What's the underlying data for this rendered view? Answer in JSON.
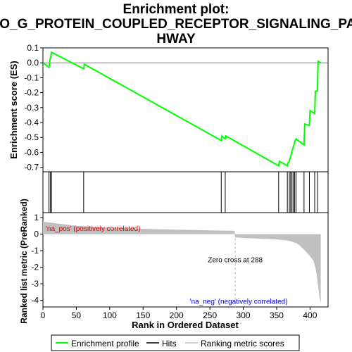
{
  "chart_data": {
    "type": "line",
    "title_lines": [
      "Enrichment plot:",
      "GO_G_PROTEIN_COUPLED_RECEPTOR_SIGNALING_PAT",
      "HWAY"
    ],
    "xlabel": "Rank in Ordered Dataset",
    "ylabel_top": "Enrichment score (ES)",
    "ylabel_bottom": "Ranked list metric (PreRanked)",
    "xlim": [
      0,
      427
    ],
    "x_ticks": [
      0,
      50,
      100,
      150,
      200,
      250,
      300,
      350,
      400
    ],
    "es_ylim": [
      -0.73,
      0.1
    ],
    "es_ticks": [
      0.1,
      0.0,
      -0.1,
      -0.2,
      -0.3,
      -0.4,
      -0.5,
      -0.6,
      -0.7
    ],
    "metric_ylim": [
      -4.4,
      1.3
    ],
    "metric_ticks": [
      1,
      0,
      -1,
      -2,
      -3,
      -4
    ],
    "es_points": {
      "x": [
        0,
        9,
        11,
        13,
        61,
        62,
        267,
        268,
        273,
        274,
        353,
        354,
        366,
        367,
        369,
        370,
        371,
        372,
        373,
        374,
        375,
        376,
        377,
        378,
        379,
        391,
        392,
        399,
        400,
        407,
        408,
        411,
        412,
        416
      ],
      "y": [
        0.0,
        -0.03,
        0.03,
        0.07,
        -0.04,
        -0.01,
        -0.52,
        -0.49,
        -0.51,
        -0.49,
        -0.69,
        -0.66,
        -0.69,
        -0.67,
        -0.66,
        -0.64,
        -0.63,
        -0.61,
        -0.59,
        -0.58,
        -0.56,
        -0.55,
        -0.53,
        -0.52,
        -0.51,
        -0.55,
        -0.41,
        -0.42,
        -0.32,
        -0.34,
        -0.19,
        -0.19,
        0.01,
        0.0
      ]
    },
    "hits": [
      9,
      11,
      13,
      61,
      267,
      273,
      353,
      366,
      369,
      371,
      373,
      375,
      377,
      379,
      391,
      399,
      407,
      411
    ],
    "metric_profile": {
      "x": [
        0,
        20,
        50,
        100,
        150,
        200,
        250,
        287,
        288,
        300,
        330,
        350,
        360,
        370,
        380,
        385,
        390,
        395,
        400,
        405,
        408,
        410,
        412,
        414,
        416
      ],
      "y": [
        0.75,
        0.65,
        0.5,
        0.4,
        0.32,
        0.27,
        0.23,
        0.2,
        -0.2,
        -0.23,
        -0.28,
        -0.32,
        -0.36,
        -0.42,
        -0.55,
        -0.7,
        -0.9,
        -1.1,
        -1.35,
        -1.6,
        -2.0,
        -2.5,
        -3.1,
        -3.8,
        -4.2
      ]
    },
    "zero_cross": 288,
    "zero_cross_label": "Zero cross at 288",
    "pos_label": "'na_pos' (positively correlated)",
    "neg_label": "'na_neg' (negatively correlated)",
    "heatbar": {
      "total": 416,
      "segments": [
        {
          "from": 0,
          "to": 45,
          "color": "#e8141e"
        },
        {
          "from": 45,
          "to": 95,
          "color": "#f0404a"
        },
        {
          "from": 95,
          "to": 135,
          "color": "#f76872"
        },
        {
          "from": 135,
          "to": 200,
          "color": "#fb949b"
        },
        {
          "from": 200,
          "to": 288,
          "color": "#fac2e6"
        },
        {
          "from": 288,
          "to": 330,
          "color": "#d8d8fa"
        },
        {
          "from": 330,
          "to": 360,
          "color": "#c0c0f6"
        },
        {
          "from": 360,
          "to": 385,
          "color": "#9c9cf2"
        },
        {
          "from": 385,
          "to": 400,
          "color": "#5050ee"
        },
        {
          "from": 400,
          "to": 416,
          "color": "#1a1ad2"
        }
      ]
    },
    "legend": {
      "placement": "bottom",
      "items": [
        {
          "label": "Enrichment profile",
          "color": "#00ff00"
        },
        {
          "label": "Hits",
          "color": "#000000"
        },
        {
          "label": "Ranking metric scores",
          "color": "#c0c0c0"
        }
      ]
    },
    "colors": {
      "es_line": "#00ff00",
      "hit_line": "#000000",
      "metric_fill": "#c0c0c0",
      "pos_label": "#e00000",
      "neg_label": "#0000e0",
      "zero_line": "#b0b0b0"
    }
  }
}
